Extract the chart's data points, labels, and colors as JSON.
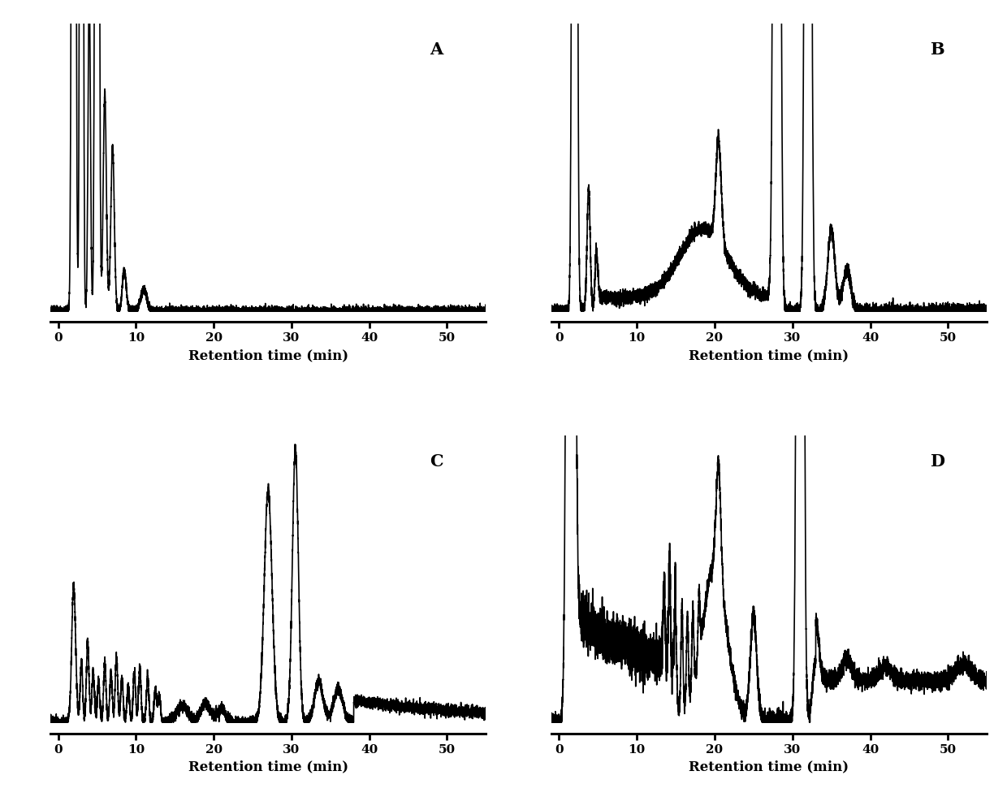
{
  "background_color": "#ffffff",
  "xlabel": "Retention time (min)",
  "xlabel_fontsize": 12,
  "xlabel_fontweight": "bold",
  "label_fontsize": 15,
  "label_fontweight": "bold",
  "xlim": [
    -1,
    55
  ],
  "xticks": [
    0,
    10,
    20,
    30,
    40,
    50
  ],
  "linewidth": 1.2,
  "line_color": "#000000",
  "panels": [
    "A",
    "B",
    "C",
    "D"
  ]
}
